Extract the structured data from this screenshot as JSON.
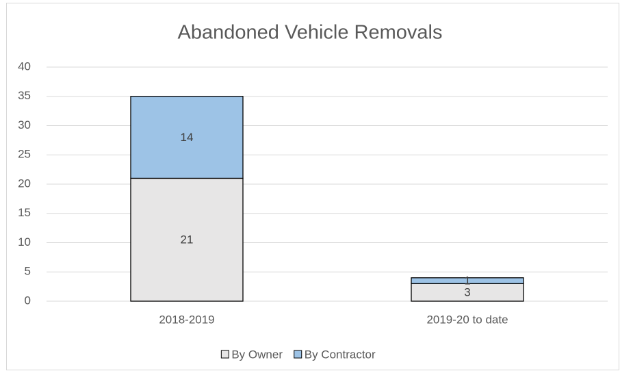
{
  "chart_data": {
    "type": "stacked_bar",
    "title": "Abandoned Vehicle Removals",
    "categories": [
      "2018-2019",
      "2019-20 to date"
    ],
    "series": [
      {
        "name": "By Owner",
        "color": "#e7e6e6",
        "values": [
          21,
          3
        ]
      },
      {
        "name": "By Contractor",
        "color": "#9dc3e6",
        "values": [
          14,
          1
        ]
      }
    ],
    "ylim": [
      0,
      40
    ],
    "yticks": [
      0,
      5,
      10,
      15,
      20,
      25,
      30,
      35,
      40
    ],
    "grid": true,
    "legend": "bottom"
  }
}
